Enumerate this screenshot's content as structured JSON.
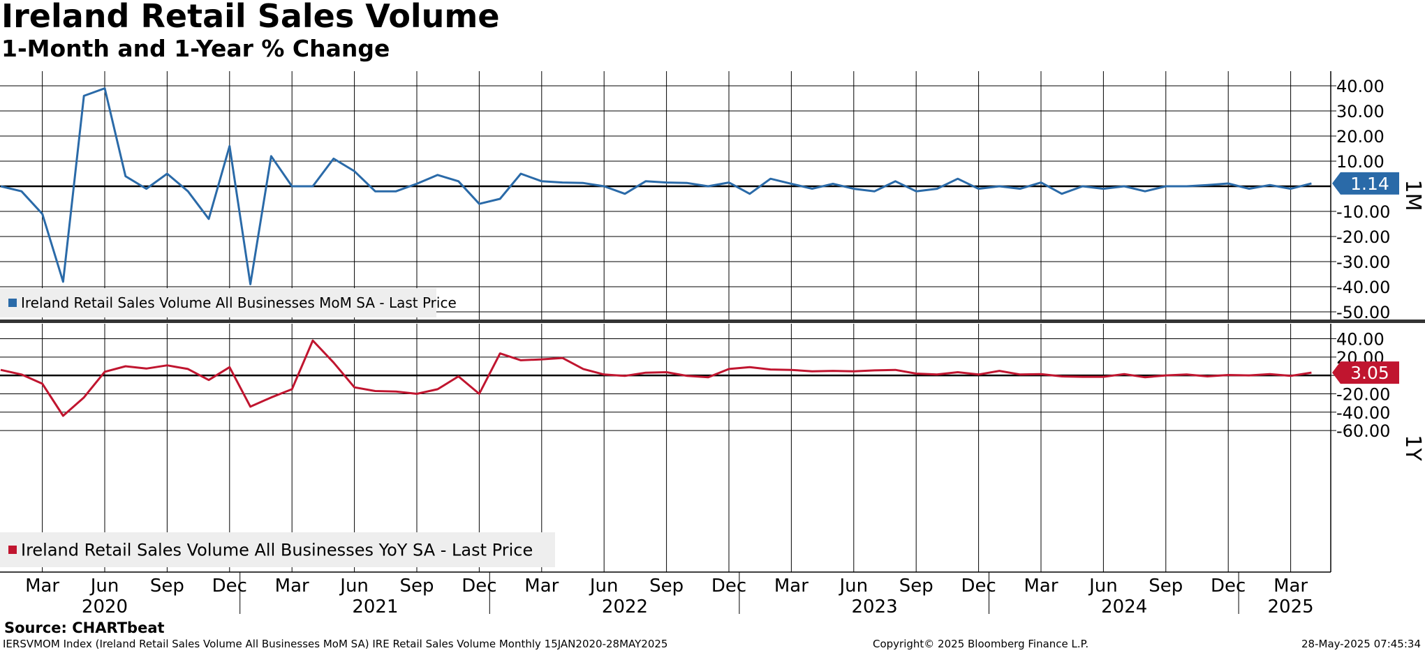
{
  "header": {
    "title": "Ireland Retail Sales Volume",
    "subtitle": "1-Month and 1-Year % Change"
  },
  "footer": {
    "source": "Source: CHARTbeat",
    "description": "IERSVMOM Index (Ireland Retail Sales Volume All Businesses MoM SA) IRE Retail Sales Volume  Monthly 15JAN2020-28MAY2025",
    "copyright": "Copyright© 2025 Bloomberg Finance L.P.",
    "timestamp": "28-May-2025 07:45:34"
  },
  "colors": {
    "mom": "#2a6aa8",
    "yoy": "#c0152f",
    "grid": "#000000",
    "legend_bg": "#eeeeee"
  },
  "chart_data": [
    {
      "type": "line",
      "panel": "top",
      "axis_label": "1M",
      "legend": "Ireland Retail Sales Volume All Businesses MoM SA - Last Price",
      "last_value_label": "1.14",
      "ylim": [
        -52,
        48
      ],
      "y_ticks": [
        40,
        30,
        20,
        10,
        -10,
        -20,
        -30,
        -40,
        -50
      ],
      "y_tick_labels": [
        "40.00",
        "30.00",
        "20.00",
        "10.00",
        "-10.00",
        "-20.00",
        "-30.00",
        "-40.00",
        "-50.00"
      ],
      "grid": true,
      "series": [
        {
          "name": "Ireland Retail Sales Volume All Businesses MoM SA - Last Price",
          "start": "2020-01",
          "values": [
            0,
            -2,
            -11,
            -38,
            36,
            39,
            4,
            -1,
            5,
            -2,
            -13,
            16,
            -39,
            12,
            0,
            0,
            11,
            6,
            -2,
            -2,
            1,
            4.5,
            2,
            -7,
            -5,
            5,
            2,
            1.5,
            1.3,
            0,
            -3,
            2,
            1.5,
            1.3,
            0,
            1.5,
            -3,
            3,
            1,
            -1,
            1,
            -1,
            -2,
            2,
            -2,
            -1,
            3,
            -1,
            0,
            -1,
            1.5,
            -3,
            0,
            -1,
            0,
            -2,
            0,
            0,
            0.5,
            1.1,
            -1,
            0.5,
            -1,
            1.14
          ]
        }
      ]
    },
    {
      "type": "line",
      "panel": "bottom",
      "axis_label": "1Y",
      "legend": "Ireland Retail Sales Volume All Businesses YoY SA - Last Price",
      "last_value_label": "3.05",
      "ylim": [
        -62,
        44
      ],
      "y_ticks": [
        40,
        20,
        0,
        -20,
        -40,
        -60
      ],
      "y_tick_labels": [
        "40.00",
        "20.00",
        "0.00",
        "-20.00",
        "-40.00",
        "-60.00"
      ],
      "grid": true,
      "series": [
        {
          "name": "Ireland Retail Sales Volume All Businesses YoY SA - Last Price",
          "start": "2020-01",
          "values": [
            6,
            1,
            -9,
            -44,
            -24,
            4,
            10,
            7.5,
            11,
            7,
            -5,
            9,
            -34,
            -24,
            -15,
            38,
            14,
            -13,
            -17,
            -17.5,
            -20,
            -15,
            -1,
            -20,
            24,
            16.5,
            17.5,
            19,
            7,
            1,
            -0.5,
            3,
            3.5,
            -0.5,
            -2,
            7,
            9,
            6.5,
            6,
            4.5,
            5,
            4.5,
            5.5,
            6,
            2,
            1,
            3.5,
            1,
            5,
            1,
            1.5,
            -1,
            -1.5,
            -1.5,
            1.5,
            -2,
            0,
            1,
            -1,
            0.5,
            0,
            1.5,
            -0.5,
            3.05
          ]
        }
      ]
    }
  ],
  "x_axis": {
    "tick_labels": [
      "Mar",
      "Jun",
      "Sep",
      "Dec",
      "Mar",
      "Jun",
      "Sep",
      "Dec",
      "Mar",
      "Jun",
      "Sep",
      "Dec",
      "Mar",
      "Jun",
      "Sep",
      "Dec",
      "Mar",
      "Jun",
      "Sep",
      "Dec",
      "Mar"
    ],
    "tick_months": [
      "2020-03",
      "2020-06",
      "2020-09",
      "2020-12",
      "2021-03",
      "2021-06",
      "2021-09",
      "2021-12",
      "2022-03",
      "2022-06",
      "2022-09",
      "2022-12",
      "2023-03",
      "2023-06",
      "2023-09",
      "2023-12",
      "2024-03",
      "2024-06",
      "2024-09",
      "2024-12",
      "2025-03"
    ],
    "year_labels": [
      "2020",
      "2021",
      "2022",
      "2023",
      "2024",
      "2025"
    ],
    "year_label_months": [
      "2020-06",
      "2021-07",
      "2022-07",
      "2023-07",
      "2024-07",
      "2025-03"
    ]
  }
}
